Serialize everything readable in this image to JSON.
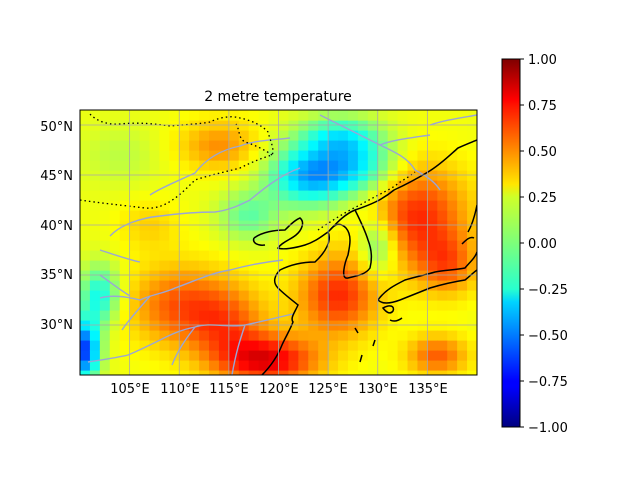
{
  "title": "2 metre temperature",
  "lon_ticks": [
    "105°E",
    "110°E",
    "115°E",
    "120°E",
    "125°E",
    "130°E",
    "135°E"
  ],
  "lat_ticks": [
    "30°N",
    "35°N",
    "40°N",
    "45°N",
    "50°N"
  ],
  "colorbar_ticks": [
    "1.00",
    "0.75",
    "0.50",
    "0.25",
    "0.00",
    "−0.25",
    "−0.50",
    "−0.75",
    "−1.00"
  ],
  "map_extent": {
    "lon": [
      100,
      140
    ],
    "lat": [
      25,
      51.5
    ]
  },
  "colorbar_range": [
    -1.0,
    1.0
  ],
  "colormap": "jet",
  "colors": {
    "coastline": "#000000",
    "border": "#000000",
    "rivers": "#9aa6d6",
    "grid": "#a9a9a9"
  }
}
